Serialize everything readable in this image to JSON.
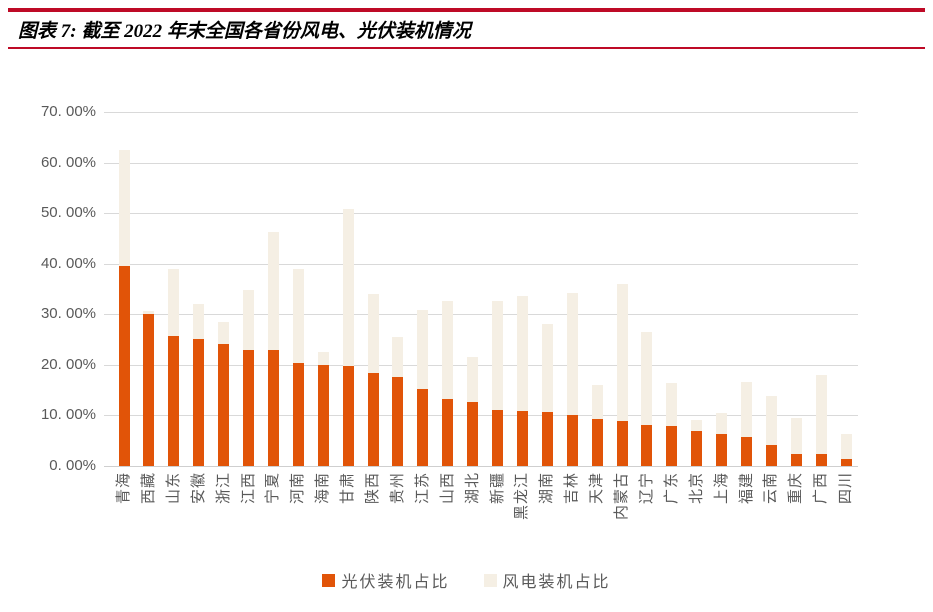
{
  "header": {
    "title": "图表 7: 截至 2022 年末全国各省份风电、光伏装机情况",
    "rule_color": "#be0a26"
  },
  "chart_data": {
    "type": "bar",
    "style": "overlay",
    "title": "截至 2022 年末全国各省份风电、光伏装机情况",
    "categories": [
      "青海",
      "西藏",
      "山东",
      "安徽",
      "浙江",
      "江西",
      "宁夏",
      "河南",
      "海南",
      "甘肃",
      "陕西",
      "贵州",
      "江苏",
      "山西",
      "湖北",
      "新疆",
      "黑龙江",
      "湖南",
      "吉林",
      "天津",
      "内蒙古",
      "辽宁",
      "广东",
      "北京",
      "上海",
      "福建",
      "云南",
      "重庆",
      "广西",
      "四川"
    ],
    "series": [
      {
        "name": "光伏装机占比",
        "color": "#e15408",
        "values": [
          39.6,
          30.0,
          25.8,
          25.2,
          24.1,
          23.0,
          22.9,
          20.4,
          19.9,
          19.7,
          18.3,
          17.6,
          15.3,
          13.3,
          12.6,
          11.1,
          10.8,
          10.7,
          10.0,
          9.2,
          8.8,
          8.2,
          7.9,
          7.0,
          6.3,
          5.7,
          4.1,
          2.4,
          2.3,
          1.3
        ]
      },
      {
        "name": "风电装机占比",
        "color": "#f5efe4",
        "values": [
          62.4,
          30.6,
          39.0,
          32.1,
          28.4,
          34.9,
          46.3,
          39.0,
          22.5,
          50.9,
          34.0,
          25.6,
          30.8,
          32.7,
          21.5,
          32.7,
          33.7,
          28.1,
          34.3,
          16.0,
          35.9,
          26.5,
          16.4,
          9.0,
          10.5,
          16.7,
          13.9,
          9.5,
          17.9,
          6.4
        ]
      }
    ],
    "y_ticks_top_down": [
      "70. 00%",
      "60. 00%",
      "50. 00%",
      "40. 00%",
      "30. 00%",
      "20. 00%",
      "10. 00%",
      "0. 00%"
    ],
    "ylim": [
      0,
      70
    ],
    "grid": true,
    "legend_position": "bottom",
    "colors": {
      "grid": "#d9d9d9",
      "axis_text": "#595959"
    }
  }
}
